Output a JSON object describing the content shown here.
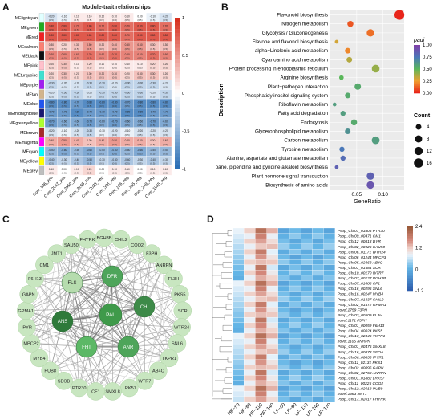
{
  "panels": {
    "a": {
      "letter": "A",
      "title": "Module-trait relationships",
      "modules": [
        "MElightcyan",
        "MEgreen",
        "MEred",
        "MEsalmon",
        "MEblack",
        "MEpink",
        "MEturquoise",
        "MEpurple",
        "MEtan",
        "MEblue",
        "MEmidnightblue",
        "MEgreenyellow",
        "MEbrown",
        "MEmagenta",
        "MEcyan",
        "MEyellow",
        "MEgrey"
      ],
      "module_colors": [
        "#e0ffff",
        "#22aa22",
        "#ee2222",
        "#fa8072",
        "#111111",
        "#ffc0cb",
        "#40e0d0",
        "#a020f0",
        "#d2b48c",
        "#2255ee",
        "#191970",
        "#adff2f",
        "#a52a2a",
        "#ff00ff",
        "#00ffff",
        "#ffff00",
        "#bebebe"
      ],
      "traits": [
        "Com_536_pos",
        "Com_2967_pos",
        "Com_2959_pos",
        "Com_2265_pos",
        "Com_2038_neg",
        "Com_338_neg",
        "Com_226_neg",
        "Com_255_neg",
        "Com_249_neg",
        "Com_1065_neg"
      ],
      "scale_ticks": [
        "1",
        "0.5",
        "0",
        "-0.5",
        "-1"
      ],
      "values": [
        [
          -0.2,
          -0.1,
          0.1,
          0.1,
          0.1,
          0.1,
          0.1,
          0.0,
          -0.1,
          -0.2
        ],
        [
          0.8,
          0.8,
          0.7,
          0.8,
          0.7,
          0.8,
          0.7,
          0.8,
          0.8,
          0.7
        ],
        [
          0.8,
          0.8,
          0.8,
          0.8,
          0.8,
          0.8,
          0.7,
          0.8,
          0.8,
          0.8
        ],
        [
          0.3,
          0.2,
          0.3,
          0.5,
          0.3,
          0.4,
          0.5,
          0.5,
          0.3,
          0.3
        ],
        [
          0.6,
          0.6,
          0.6,
          0.7,
          0.6,
          0.7,
          0.6,
          0.6,
          0.7,
          0.6
        ],
        [
          0.2,
          0.3,
          0.1,
          0.2,
          0.1,
          0.1,
          0.1,
          0.1,
          0.2,
          0.2
        ],
        [
          0.2,
          0.3,
          0.2,
          0.3,
          0.3,
          0.3,
          0.2,
          0.3,
          0.3,
          0.2
        ],
        [
          -0.3,
          -0.2,
          -0.2,
          -0.3,
          -0.3,
          -0.2,
          -0.3,
          -0.3,
          -0.3,
          -0.2
        ],
        [
          -0.2,
          -0.3,
          -0.3,
          -0.2,
          -0.3,
          -0.3,
          -0.3,
          -0.3,
          -0.2,
          -0.3
        ],
        [
          -0.8,
          -0.8,
          -0.7,
          -0.8,
          -0.8,
          -0.8,
          -0.7,
          -0.8,
          -0.8,
          -0.8
        ],
        [
          -0.7,
          -0.7,
          -0.8,
          -0.7,
          -0.7,
          -0.7,
          -0.8,
          -0.8,
          -0.7,
          -0.7
        ],
        [
          -0.7,
          -0.6,
          -0.6,
          -0.7,
          -0.6,
          -0.7,
          -0.6,
          -0.6,
          -0.7,
          -0.6
        ],
        [
          -0.2,
          -0.1,
          -0.2,
          -0.3,
          -0.1,
          -0.2,
          -0.1,
          -0.2,
          -0.2,
          -0.2
        ],
        [
          0.4,
          0.5,
          0.4,
          0.3,
          0.4,
          0.5,
          0.4,
          0.4,
          0.3,
          0.4
        ],
        [
          -0.5,
          -0.6,
          -0.5,
          -0.6,
          -0.5,
          -0.6,
          -0.5,
          -0.6,
          -0.5,
          -0.5
        ],
        [
          -0.4,
          -0.3,
          -0.4,
          -0.5,
          -0.3,
          -0.4,
          -0.4,
          -0.3,
          -0.4,
          -0.3
        ],
        [
          0.1,
          0.0,
          0.1,
          0.2,
          0.0,
          0.1,
          0.1,
          0.0,
          0.1,
          0.1
        ]
      ]
    },
    "b": {
      "letter": "B",
      "xlabel": "GeneRatio",
      "ylabel": "Description",
      "x_ticks": [
        0.05,
        0.1
      ],
      "xlim": [
        0.0,
        0.14
      ],
      "pathways": [
        {
          "name": "Flavonoid biosynthesis",
          "ratio": 0.131,
          "padj": 0.0,
          "count": 18
        },
        {
          "name": "Nitrogen metabolism",
          "ratio": 0.038,
          "padj": 0.1,
          "count": 5
        },
        {
          "name": "Glycolysis / Gluconeogenesis",
          "ratio": 0.076,
          "padj": 0.15,
          "count": 9
        },
        {
          "name": "Flavone and flavonol biosynthesis",
          "ratio": 0.012,
          "padj": 0.3,
          "count": 1
        },
        {
          "name": "alpha−Linolenic acid metabolism",
          "ratio": 0.033,
          "padj": 0.2,
          "count": 4
        },
        {
          "name": "Cyanoamino acid metabolism",
          "ratio": 0.036,
          "padj": 0.35,
          "count": 4
        },
        {
          "name": "Protein processing in endoplasmic reticulum",
          "ratio": 0.086,
          "padj": 0.4,
          "count": 10
        },
        {
          "name": "Arginine biosynthesis",
          "ratio": 0.021,
          "padj": 0.5,
          "count": 2
        },
        {
          "name": "Plant−pathogen interaction",
          "ratio": 0.052,
          "padj": 0.55,
          "count": 6
        },
        {
          "name": "Phosphatidylinositol signaling system",
          "ratio": 0.033,
          "padj": 0.55,
          "count": 4
        },
        {
          "name": "Riboflavin metabolism",
          "ratio": 0.008,
          "padj": 0.6,
          "count": 1
        },
        {
          "name": "Fatty acid degradation",
          "ratio": 0.024,
          "padj": 0.6,
          "count": 3
        },
        {
          "name": "Endocytosis",
          "ratio": 0.045,
          "padj": 0.55,
          "count": 5
        },
        {
          "name": "Glycerophospholipid metabolism",
          "ratio": 0.033,
          "padj": 0.65,
          "count": 4
        },
        {
          "name": "Carbon metabolism",
          "ratio": 0.086,
          "padj": 0.6,
          "count": 10
        },
        {
          "name": "Tyrosine metabolism",
          "ratio": 0.022,
          "padj": 0.75,
          "count": 3
        },
        {
          "name": "Alanine, aspartate and glutamate metabolism",
          "ratio": 0.024,
          "padj": 0.8,
          "count": 3
        },
        {
          "name": "Tropane, piperidine and pyridine alkaloid biosynthesis",
          "ratio": 0.012,
          "padj": 0.85,
          "count": 1
        },
        {
          "name": "Plant hormone signal transduction",
          "ratio": 0.076,
          "padj": 0.85,
          "count": 9
        },
        {
          "name": "Biosynthesis of amino acids",
          "ratio": 0.076,
          "padj": 0.9,
          "count": 9
        }
      ],
      "padj_legend": {
        "title": "padj",
        "ticks": [
          "1.00",
          "0.75",
          "0.50",
          "0.25",
          "0.00"
        ]
      },
      "count_legend": {
        "title": "Count",
        "values": [
          4,
          8,
          12,
          16
        ]
      }
    },
    "c": {
      "letter": "C",
      "outer_nodes": [
        "BGH3B",
        "CHIL2",
        "COQ2",
        "F3PH",
        "ANRPN",
        "FL3H",
        "PKS5",
        "SCR",
        "WTR24",
        "SNL6",
        "TKPR1",
        "AB4C",
        "WTR7",
        "LRK57",
        "SMXL8",
        "CF1",
        "PTR30",
        "SEOB",
        "PUB8",
        "MYB4",
        "MPCP2",
        "IPYR",
        "GPMA1",
        "GAPN",
        "F6H13",
        "CM1",
        "JMT1",
        "SAU50",
        "FHYRK"
      ],
      "mid_nodes": [
        "FLS",
        "DFR",
        "CHI",
        "ANR",
        "FHT",
        "ANS"
      ],
      "center_node": "PAL"
    },
    "d": {
      "letter": "D",
      "columns": [
        "HF−50",
        "HF−80",
        "HF−110",
        "HF−140",
        "LF−50",
        "LF−80",
        "LF−110",
        "LF−140",
        "LF−170"
      ],
      "scale_ticks": [
        "2.4",
        "1.2",
        "0",
        "-1.2"
      ],
      "genes": [
        "Pspp_Chr07_01805 PTR30",
        "Pspp_Chr09_00471 CM1",
        "Pspp_Chr12_00813 DYR",
        "Pspp_Chr02_00926 SAU50",
        "Pspp_Chr06_01171 WTR24",
        "Pspp_Chr06_01244 MPCP3",
        "Pspp_Chr05_02363 AB4C",
        "Pspp_Chr01_01584 SCR",
        "Pspp_Chr10_00170 WTR7",
        "Pspp_Chr07_00127 BGH3B",
        "Pspp_Chr07_01088 CF1",
        "Pspp_Chr16_00295 SNL6",
        "Pspp_Chr16_00247 MYB4",
        "Pspp_Chr07_01837 CHIL2",
        "Pspp_Chr02_01472 GPMA1",
        "novel.2759 F3PH",
        "Pspp_Chr02_00509 FL3H",
        "novel.1171 F3PH",
        "Pspp_Chr01_00059 F6H13",
        "Pspp_Chr04_00024 PKS5",
        "Pspp_Chr13_02345 TKPR1",
        "novel.1105 ANRPN",
        "Pspp_Chr01_00475 SMXL8",
        "Pspp_Chr16_00873 SEOA",
        "Pspp_Chr06_00836 IPYR1",
        "Pspp_Chr11_02131 PKS1",
        "Pspp_Chr02_00096 GAPN",
        "Pspp_Chr02_02768 ANRPN",
        "Pspp_Chr01_01882 LRK57",
        "Pspp_Chr11_00225 COQ2",
        "Pspp_Chr12_02018 PUB9",
        "novel.1463 JMT1",
        "Pspp_Chr17_02017 FHYRK"
      ]
    }
  }
}
